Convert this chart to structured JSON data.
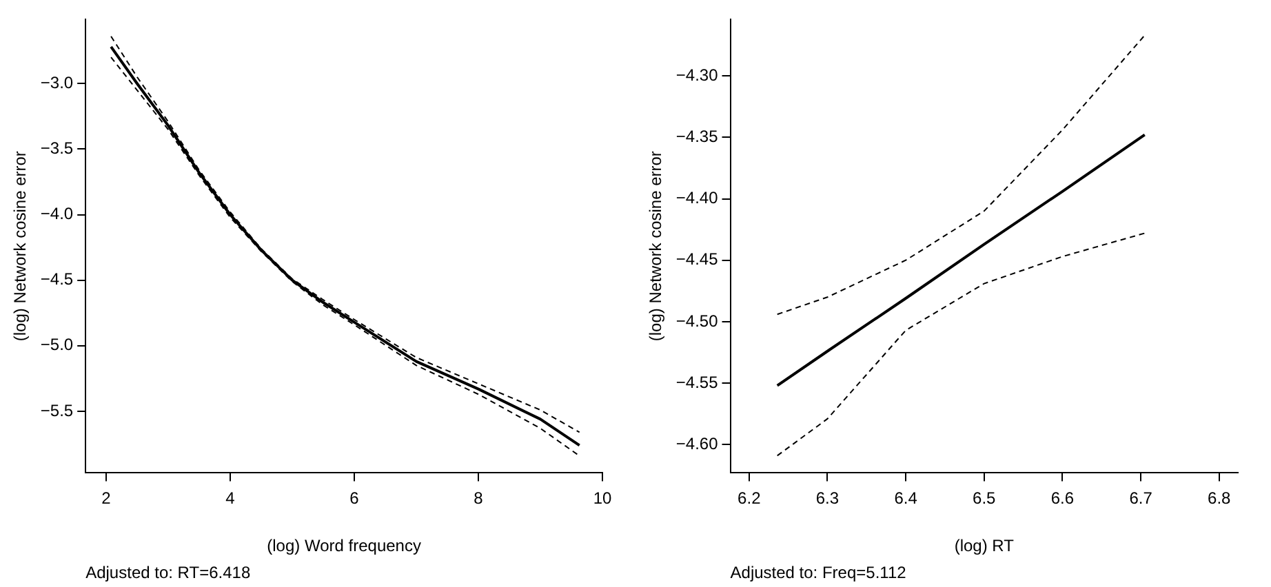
{
  "chart_data": [
    {
      "type": "line",
      "xlabel": "(log) Word frequency",
      "ylabel": "(log) Network cosine error",
      "annotations": [
        "Adjusted to: RT=6.418"
      ],
      "x": [
        2.08,
        2.5,
        3,
        3.5,
        4,
        4.5,
        5,
        5.5,
        6,
        7,
        8,
        9,
        9.63
      ],
      "series": [
        {
          "color": "#000000",
          "values": [
            -2.72,
            -3.0,
            -3.32,
            -3.68,
            -4.0,
            -4.27,
            -4.5,
            -4.67,
            -4.82,
            -5.12,
            -5.33,
            -5.56,
            -5.76
          ]
        },
        {
          "color": "#000000",
          "line_style": "dashed",
          "values": [
            -2.64,
            -2.95,
            -3.29,
            -3.66,
            -3.98,
            -4.26,
            -4.49,
            -4.65,
            -4.8,
            -5.09,
            -5.29,
            -5.49,
            -5.66
          ]
        },
        {
          "color": "#000000",
          "line_style": "dashed",
          "values": [
            -2.8,
            -3.05,
            -3.35,
            -3.7,
            -4.02,
            -4.28,
            -4.51,
            -4.69,
            -4.84,
            -5.15,
            -5.37,
            -5.63,
            -5.84
          ]
        }
      ],
      "xlim": [
        1.67,
        10
      ],
      "ylim": [
        -5.97,
        -2.51
      ],
      "xticks": [
        2,
        4,
        6,
        8,
        10
      ],
      "yticks": [
        {
          "value": -3,
          "label": "−3.0"
        },
        {
          "value": -3.5,
          "label": "−3.5"
        },
        {
          "value": -4,
          "label": "−4.0"
        },
        {
          "value": -4.5,
          "label": "−4.5"
        },
        {
          "value": -5,
          "label": "−5.0"
        },
        {
          "value": -5.5,
          "label": "−5.5"
        }
      ],
      "grid": false,
      "legend": false,
      "line_style": "solid",
      "marker": "none"
    },
    {
      "type": "line",
      "xlabel": "(log) RT",
      "ylabel": "(log) Network cosine error",
      "annotations": [
        "Adjusted to: Freq=5.112"
      ],
      "x": [
        6.236,
        6.3,
        6.4,
        6.5,
        6.6,
        6.705
      ],
      "series": [
        {
          "color": "#000000",
          "values": [
            -4.552,
            -4.524,
            -4.481,
            -4.437,
            -4.394,
            -4.348
          ]
        },
        {
          "color": "#000000",
          "line_style": "dashed",
          "values": [
            -4.494,
            -4.48,
            -4.45,
            -4.41,
            -4.344,
            -4.267
          ]
        },
        {
          "color": "#000000",
          "line_style": "dashed",
          "values": [
            -4.609,
            -4.579,
            -4.507,
            -4.469,
            -4.447,
            -4.428
          ]
        }
      ],
      "xlim": [
        6.176,
        6.824
      ],
      "ylim": [
        -4.623,
        -4.254
      ],
      "xticks": [
        6.2,
        6.3,
        6.4,
        6.5,
        6.6,
        6.7,
        6.8
      ],
      "yticks": [
        {
          "value": -4.3,
          "label": "−4.30"
        },
        {
          "value": -4.35,
          "label": "−4.35"
        },
        {
          "value": -4.4,
          "label": "−4.40"
        },
        {
          "value": -4.45,
          "label": "−4.45"
        },
        {
          "value": -4.5,
          "label": "−4.50"
        },
        {
          "value": -4.55,
          "label": "−4.55"
        },
        {
          "value": -4.6,
          "label": "−4.60"
        }
      ],
      "grid": false,
      "legend": false,
      "line_style": "solid",
      "marker": "none"
    }
  ]
}
